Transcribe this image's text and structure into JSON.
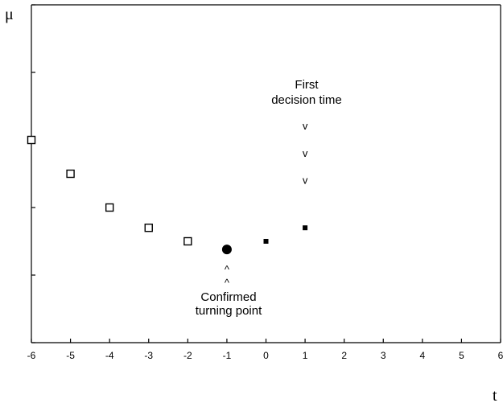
{
  "chart_data": {
    "type": "scatter",
    "title": "",
    "xlabel": "t",
    "ylabel": "μ",
    "xlim": [
      -6,
      6
    ],
    "xticks": [
      "-6",
      "-5",
      "-4",
      "-3",
      "-2",
      "-1",
      "0",
      "1",
      "2",
      "3",
      "4",
      "5",
      "6"
    ],
    "ylim": [
      0,
      5
    ],
    "grid": false,
    "series": [
      {
        "marker": "open-square",
        "points": [
          {
            "x": -6,
            "y": 3.0
          },
          {
            "x": -5,
            "y": 2.5
          },
          {
            "x": -4,
            "y": 2.0
          },
          {
            "x": -3,
            "y": 1.7
          },
          {
            "x": -2,
            "y": 1.5
          }
        ]
      },
      {
        "marker": "filled-circle",
        "points": [
          {
            "x": -1,
            "y": 1.38
          }
        ]
      },
      {
        "marker": "small-filled-square",
        "points": [
          {
            "x": 0,
            "y": 1.5
          },
          {
            "x": 1,
            "y": 1.7
          }
        ]
      }
    ],
    "annotations": {
      "decision": {
        "lines": [
          "First",
          "decision time"
        ],
        "x": 1,
        "marker_text": "v",
        "marker_y": [
          3.2,
          2.8,
          2.4
        ]
      },
      "turning": {
        "lines": [
          "Confirmed",
          "turning point"
        ],
        "x": -1,
        "marker_text": "^",
        "marker_y": [
          1.08,
          0.88
        ]
      }
    }
  }
}
